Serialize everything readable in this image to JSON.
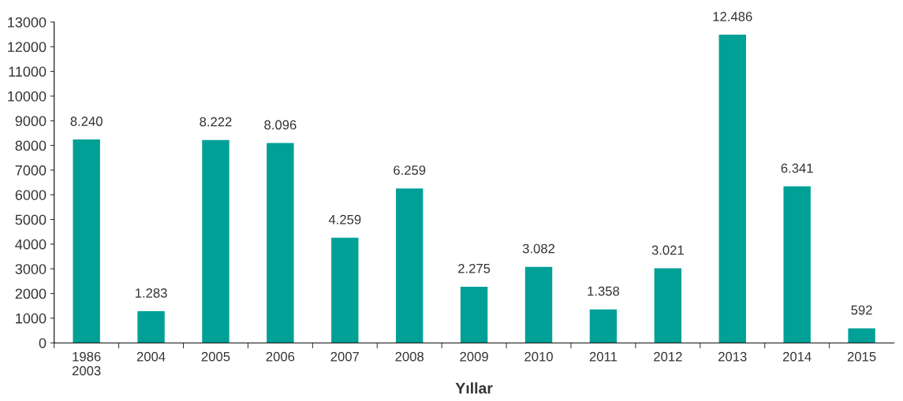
{
  "chart_data": {
    "type": "bar",
    "xlabel": "Yıllar",
    "categories": [
      "1986\n2003",
      "2004",
      "2005",
      "2006",
      "2007",
      "2008",
      "2009",
      "2010",
      "2011",
      "2012",
      "2013",
      "2014",
      "2015"
    ],
    "values": [
      8240,
      1283,
      8222,
      8096,
      4259,
      6259,
      2275,
      3082,
      1358,
      3021,
      12486,
      6341,
      592
    ],
    "value_labels": [
      "8.240",
      "1.283",
      "8.222",
      "8.096",
      "4.259",
      "6.259",
      "2.275",
      "3.082",
      "1.358",
      "3.021",
      "12.486",
      "6.341",
      "592"
    ],
    "color": "#00a096",
    "ylim": [
      0,
      13000
    ],
    "yticks": [
      0,
      1000,
      2000,
      3000,
      4000,
      5000,
      6000,
      7000,
      8000,
      9000,
      10000,
      11000,
      12000,
      13000
    ],
    "grid": false
  }
}
